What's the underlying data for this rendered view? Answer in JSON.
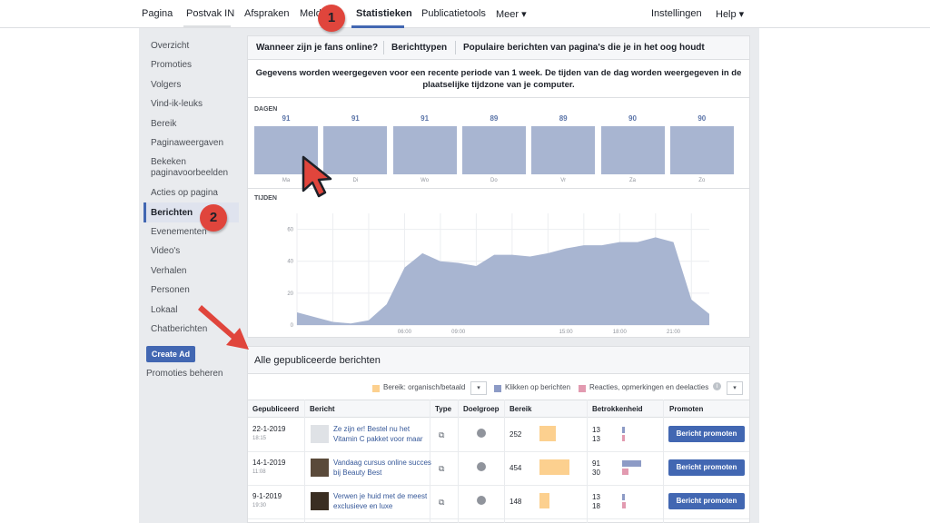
{
  "nav": {
    "items": [
      "Pagina",
      "Postvak IN",
      "Afspraken",
      "Meldi",
      "Statistieken",
      "Publicatietools",
      "Meer ▾"
    ],
    "right": [
      "Instellingen",
      "Help ▾"
    ]
  },
  "sidebar": {
    "items": [
      "Overzicht",
      "Promoties",
      "Volgers",
      "Vind-ik-leuks",
      "Bereik",
      "Paginaweergaven",
      "Bekeken paginavoorbeelden",
      "Acties op pagina",
      "Berichten",
      "Evenementen",
      "Video's",
      "Verhalen",
      "Personen",
      "Lokaal",
      "Chatberichten"
    ],
    "create_ad": "Create Ad",
    "promoties_beheren": "Promoties beheren"
  },
  "tabs": [
    "Wanneer zijn je fans online?",
    "Berichttypen",
    "Populaire berichten van pagina's die je in het oog houdt"
  ],
  "info": "Gegevens worden weergegeven voor een recente periode van 1 week. De tijden van de dag worden weergegeven in de plaatselijke tijdzone van je computer.",
  "days_label": "DAGEN",
  "times_label": "TIJDEN",
  "chart_data": [
    {
      "type": "bar",
      "categories": [
        "Ma",
        "Di",
        "Wo",
        "Do",
        "Vr",
        "Za",
        "Zo"
      ],
      "values": [
        91,
        91,
        91,
        89,
        89,
        90,
        90
      ],
      "title": "DAGEN"
    },
    {
      "type": "area",
      "title": "TIJDEN",
      "x_ticks": [
        "06:00",
        "09:00",
        "15:00",
        "18:00",
        "21:00"
      ],
      "y_ticks": [
        0,
        20,
        40,
        60
      ],
      "ylim": [
        0,
        70
      ],
      "x": [
        0,
        1,
        2,
        3,
        4,
        5,
        6,
        7,
        8,
        9,
        10,
        11,
        12,
        13,
        14,
        15,
        16,
        17,
        18,
        19,
        20,
        21,
        22,
        23
      ],
      "values": [
        8,
        5,
        2,
        1,
        3,
        13,
        36,
        45,
        40,
        39,
        37,
        44,
        44,
        43,
        45,
        48,
        50,
        50,
        52,
        52,
        55,
        52,
        16,
        7
      ],
      "grid": true
    }
  ],
  "posts": {
    "title": "Alle gepubliceerde berichten",
    "legend": [
      "Bereik: organisch/betaald",
      "Klikken op berichten",
      "Reacties, opmerkingen en deelacties"
    ],
    "legend_colors": [
      "#fcd08f",
      "#8d9bc6",
      "#e29ab0"
    ],
    "headers": [
      "Gepubliceerd",
      "Bericht",
      "Type",
      "Doelgroep",
      "Bereik",
      "Betrokkenheid",
      "Promoten"
    ],
    "rows": [
      {
        "date": "22-1-2019",
        "time": "18:15",
        "text": "Ze zijn er! Bestel nu het Vitamin C pakket voor maar",
        "reach": "252",
        "reach_frac": 0.36,
        "eng1": "13",
        "eng2": "13",
        "eng1_frac": 0.03,
        "eng2_frac": 0.03,
        "button": "Bericht promoten"
      },
      {
        "date": "14-1-2019",
        "time": "11:08",
        "text": "Vandaag cursus online succes bij Beauty Best",
        "reach": "454",
        "reach_frac": 0.65,
        "eng1": "91",
        "eng2": "30",
        "eng1_frac": 0.22,
        "eng2_frac": 0.07,
        "button": "Bericht promoten"
      },
      {
        "date": "9-1-2019",
        "time": "19:30",
        "text": "Verwen je huid met de meest exclusieve en luxe",
        "reach": "148",
        "reach_frac": 0.21,
        "eng1": "13",
        "eng2": "18",
        "eng1_frac": 0.03,
        "eng2_frac": 0.04,
        "button": "Bericht promoten"
      }
    ]
  },
  "annotations": {
    "badge1": "1",
    "badge2": "2"
  },
  "colors": {
    "accent": "#4267b2",
    "bar": "#a8b5d1",
    "annotation": "#e0453c"
  }
}
